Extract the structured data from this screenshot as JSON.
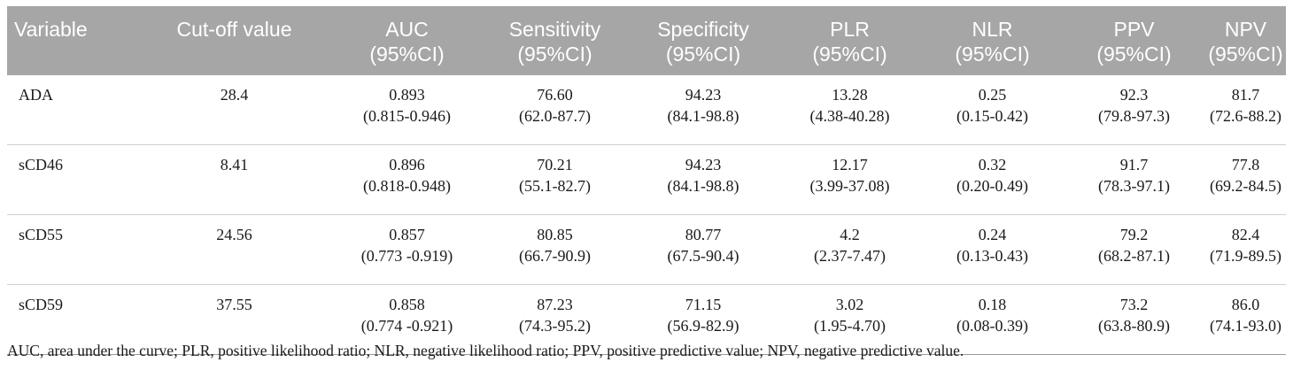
{
  "table": {
    "headers": [
      {
        "line1": "Variable",
        "line2": ""
      },
      {
        "line1": "Cut-off value",
        "line2": ""
      },
      {
        "line1": "AUC",
        "line2": "(95%CI)"
      },
      {
        "line1": "Sensitivity",
        "line2": "(95%CI)"
      },
      {
        "line1": "Specificity",
        "line2": "(95%CI)"
      },
      {
        "line1": "PLR",
        "line2": "(95%CI)"
      },
      {
        "line1": "NLR",
        "line2": "(95%CI)"
      },
      {
        "line1": "PPV",
        "line2": "(95%CI)"
      },
      {
        "line1": "NPV",
        "line2": "(95%CI)"
      }
    ],
    "rows": [
      {
        "variable": "ADA",
        "cutoff": "28.4",
        "auc": {
          "value": "0.893",
          "ci": "(0.815-0.946)"
        },
        "sensitivity": {
          "value": "76.60",
          "ci": "(62.0-87.7)"
        },
        "specificity": {
          "value": "94.23",
          "ci": "(84.1-98.8)"
        },
        "plr": {
          "value": "13.28",
          "ci": "(4.38-40.28)"
        },
        "nlr": {
          "value": "0.25",
          "ci": "(0.15-0.42)"
        },
        "ppv": {
          "value": "92.3",
          "ci": "(79.8-97.3)"
        },
        "npv": {
          "value": "81.7",
          "ci": "(72.6-88.2)"
        }
      },
      {
        "variable": "sCD46",
        "cutoff": "8.41",
        "auc": {
          "value": "0.896",
          "ci": "(0.818-0.948)"
        },
        "sensitivity": {
          "value": "70.21",
          "ci": "(55.1-82.7)"
        },
        "specificity": {
          "value": "94.23",
          "ci": "(84.1-98.8)"
        },
        "plr": {
          "value": "12.17",
          "ci": "(3.99-37.08)"
        },
        "nlr": {
          "value": "0.32",
          "ci": "(0.20-0.49)"
        },
        "ppv": {
          "value": "91.7",
          "ci": "(78.3-97.1)"
        },
        "npv": {
          "value": "77.8",
          "ci": "(69.2-84.5)"
        }
      },
      {
        "variable": "sCD55",
        "cutoff": "24.56",
        "auc": {
          "value": "0.857",
          "ci": "(0.773 -0.919)"
        },
        "sensitivity": {
          "value": "80.85",
          "ci": "(66.7-90.9)"
        },
        "specificity": {
          "value": "80.77",
          "ci": "(67.5-90.4)"
        },
        "plr": {
          "value": "4.2",
          "ci": "(2.37-7.47)"
        },
        "nlr": {
          "value": "0.24",
          "ci": "(0.13-0.43)"
        },
        "ppv": {
          "value": "79.2",
          "ci": "(68.2-87.1)"
        },
        "npv": {
          "value": "82.4",
          "ci": "(71.9-89.5)"
        }
      },
      {
        "variable": "sCD59",
        "cutoff": "37.55",
        "auc": {
          "value": "0.858",
          "ci": "(0.774 -0.921)"
        },
        "sensitivity": {
          "value": "87.23",
          "ci": "(74.3-95.2)"
        },
        "specificity": {
          "value": "71.15",
          "ci": "(56.9-82.9)"
        },
        "plr": {
          "value": "3.02",
          "ci": "(1.95-4.70)"
        },
        "nlr": {
          "value": "0.18",
          "ci": "(0.08-0.39)"
        },
        "ppv": {
          "value": "73.2",
          "ci": "(63.8-80.9)"
        },
        "npv": {
          "value": "86.0",
          "ci": "(74.1-93.0)"
        }
      }
    ]
  },
  "footnote": "AUC, area under the curve; PLR, positive likelihood ratio; NLR, negative likelihood ratio; PPV, positive predictive value; NPV, negative predictive value.",
  "colors": {
    "header_bg": "#a6a6a6",
    "header_text": "#ffffff",
    "body_text": "#1a1a1a"
  }
}
